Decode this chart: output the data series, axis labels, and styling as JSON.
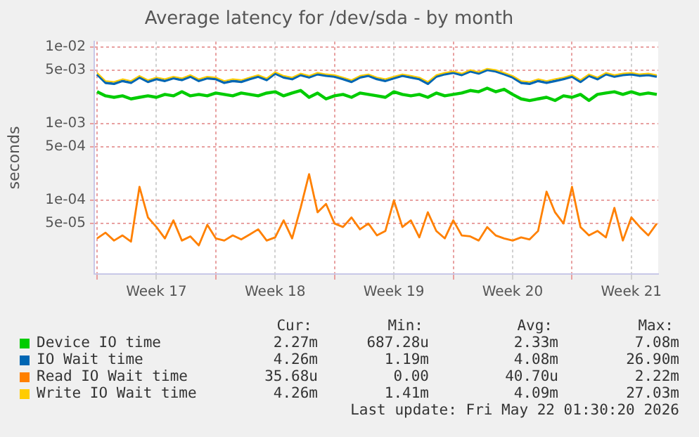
{
  "chart_data": {
    "type": "line",
    "title": "Average latency for /dev/sda - by month",
    "ylabel": "seconds",
    "log": "y",
    "grid": true,
    "legend": "bottom",
    "marker": "none",
    "line_style": "solid",
    "x": [
      "2026-04-19T00:00",
      "2026-04-19T12:00",
      "2026-04-20T00:00",
      "2026-04-20T12:00",
      "2026-04-21T00:00",
      "2026-04-21T12:00",
      "2026-04-22T00:00",
      "2026-04-22T12:00",
      "2026-04-23T00:00",
      "2026-04-23T12:00",
      "2026-04-24T00:00",
      "2026-04-24T12:00",
      "2026-04-25T00:00",
      "2026-04-25T12:00",
      "2026-04-26T00:00",
      "2026-04-26T12:00",
      "2026-04-27T00:00",
      "2026-04-27T12:00",
      "2026-04-28T00:00",
      "2026-04-28T12:00",
      "2026-04-29T00:00",
      "2026-04-29T12:00",
      "2026-04-30T00:00",
      "2026-04-30T12:00",
      "2026-05-01T00:00",
      "2026-05-01T12:00",
      "2026-05-02T00:00",
      "2026-05-02T12:00",
      "2026-05-03T00:00",
      "2026-05-03T12:00",
      "2026-05-04T00:00",
      "2026-05-04T12:00",
      "2026-05-05T00:00",
      "2026-05-05T12:00",
      "2026-05-06T00:00",
      "2026-05-06T12:00",
      "2026-05-07T00:00",
      "2026-05-07T12:00",
      "2026-05-08T00:00",
      "2026-05-08T12:00",
      "2026-05-09T00:00",
      "2026-05-09T12:00",
      "2026-05-10T00:00",
      "2026-05-10T12:00",
      "2026-05-11T00:00",
      "2026-05-11T12:00",
      "2026-05-12T00:00",
      "2026-05-12T12:00",
      "2026-05-13T00:00",
      "2026-05-13T12:00",
      "2026-05-14T00:00",
      "2026-05-14T12:00",
      "2026-05-15T00:00",
      "2026-05-15T12:00",
      "2026-05-16T00:00",
      "2026-05-16T12:00",
      "2026-05-17T00:00",
      "2026-05-17T12:00",
      "2026-05-18T00:00",
      "2026-05-18T12:00",
      "2026-05-19T00:00",
      "2026-05-19T12:00",
      "2026-05-20T00:00",
      "2026-05-20T12:00",
      "2026-05-21T00:00",
      "2026-05-21T12:00",
      "2026-05-22T00:00"
    ],
    "xlim": [
      "2026-04-18T20:00",
      "2026-05-22T02:00"
    ],
    "xticks": [
      {
        "value": "2026-04-19T00:00",
        "label": null
      },
      {
        "value": "2026-04-22T12:00",
        "label": "Week 17"
      },
      {
        "value": "2026-04-26T00:00",
        "label": null
      },
      {
        "value": "2026-04-29T12:00",
        "label": "Week 18"
      },
      {
        "value": "2026-05-03T00:00",
        "label": null
      },
      {
        "value": "2026-05-06T12:00",
        "label": "Week 19"
      },
      {
        "value": "2026-05-10T00:00",
        "label": null
      },
      {
        "value": "2026-05-13T12:00",
        "label": "Week 20"
      },
      {
        "value": "2026-05-17T00:00",
        "label": null
      },
      {
        "value": "2026-05-20T12:00",
        "label": "Week 21"
      }
    ],
    "ylim": [
      1.1e-05,
      0.0117
    ],
    "yticks": [
      {
        "value": 5e-05,
        "label": "5e-05"
      },
      {
        "value": 0.0001,
        "label": "1e-04"
      },
      {
        "value": 0.0005,
        "label": "5e-04"
      },
      {
        "value": 0.001,
        "label": "1e-03"
      },
      {
        "value": 0.005,
        "label": "5e-03"
      },
      {
        "value": 0.01,
        "label": "1e-02"
      }
    ],
    "series": [
      {
        "name": "Device IO time",
        "color": "#00cc00",
        "values": [
          0.0026,
          0.0023,
          0.0022,
          0.0023,
          0.0021,
          0.0022,
          0.0023,
          0.0022,
          0.0024,
          0.0023,
          0.0026,
          0.0023,
          0.0024,
          0.0023,
          0.0025,
          0.0024,
          0.0023,
          0.0025,
          0.0024,
          0.0023,
          0.0025,
          0.0026,
          0.0023,
          0.0025,
          0.0027,
          0.0022,
          0.0025,
          0.0021,
          0.0023,
          0.0024,
          0.0022,
          0.0025,
          0.0024,
          0.0023,
          0.0022,
          0.0026,
          0.0024,
          0.0023,
          0.0024,
          0.0022,
          0.0025,
          0.0023,
          0.0024,
          0.0025,
          0.0027,
          0.0026,
          0.0029,
          0.0026,
          0.0028,
          0.0024,
          0.0021,
          0.002,
          0.0021,
          0.0022,
          0.002,
          0.0023,
          0.0022,
          0.0024,
          0.002,
          0.0024,
          0.0025,
          0.0026,
          0.0024,
          0.0026,
          0.0024,
          0.0025,
          0.0024
        ]
      },
      {
        "name": "IO Wait time",
        "color": "#0066b3",
        "values": [
          0.0044,
          0.0034,
          0.0033,
          0.0036,
          0.0034,
          0.004,
          0.0035,
          0.0038,
          0.0036,
          0.0039,
          0.0037,
          0.0041,
          0.0036,
          0.0039,
          0.0038,
          0.0034,
          0.0036,
          0.0035,
          0.0038,
          0.0041,
          0.0037,
          0.0045,
          0.004,
          0.0038,
          0.0043,
          0.004,
          0.0044,
          0.0042,
          0.0041,
          0.0038,
          0.0035,
          0.004,
          0.0042,
          0.0038,
          0.0036,
          0.0039,
          0.0042,
          0.004,
          0.0038,
          0.0033,
          0.0041,
          0.0044,
          0.0046,
          0.0043,
          0.0048,
          0.0045,
          0.005,
          0.0048,
          0.0044,
          0.004,
          0.0034,
          0.0033,
          0.0036,
          0.0034,
          0.0036,
          0.0038,
          0.0041,
          0.0035,
          0.0042,
          0.0038,
          0.0044,
          0.0041,
          0.0043,
          0.0044,
          0.0042,
          0.0043,
          0.0041
        ]
      },
      {
        "name": "Read IO Wait time",
        "color": "#ff8000",
        "values": [
          3.2e-05,
          3.8e-05,
          3e-05,
          3.5e-05,
          2.9e-05,
          0.00015,
          6e-05,
          4.5e-05,
          3.2e-05,
          5.5e-05,
          3e-05,
          3.4e-05,
          2.6e-05,
          4.8e-05,
          3.2e-05,
          3e-05,
          3.5e-05,
          3.1e-05,
          3.6e-05,
          4.2e-05,
          3e-05,
          3.3e-05,
          5.5e-05,
          3.2e-05,
          8e-05,
          0.00022,
          7e-05,
          9e-05,
          5e-05,
          4.5e-05,
          6e-05,
          4.2e-05,
          5e-05,
          3.5e-05,
          4e-05,
          0.0001,
          4.5e-05,
          5.5e-05,
          3.3e-05,
          7e-05,
          4e-05,
          3.2e-05,
          5.5e-05,
          3.5e-05,
          3.4e-05,
          3e-05,
          4.5e-05,
          3.5e-05,
          3.2e-05,
          3e-05,
          3.3e-05,
          3.1e-05,
          4e-05,
          0.00013,
          7e-05,
          5e-05,
          0.00015,
          4.5e-05,
          3.5e-05,
          4e-05,
          3.3e-05,
          8e-05,
          3e-05,
          6e-05,
          4.5e-05,
          3.5e-05,
          5e-05
        ]
      },
      {
        "name": "Write IO Wait time",
        "color": "#ffcc00",
        "values": [
          0.0046,
          0.0036,
          0.0035,
          0.0038,
          0.0036,
          0.0042,
          0.0037,
          0.004,
          0.0038,
          0.0041,
          0.0039,
          0.0043,
          0.0038,
          0.0041,
          0.004,
          0.0036,
          0.0038,
          0.0037,
          0.004,
          0.0043,
          0.0039,
          0.0047,
          0.0042,
          0.004,
          0.0045,
          0.0042,
          0.0046,
          0.0044,
          0.0043,
          0.004,
          0.0037,
          0.0042,
          0.0044,
          0.004,
          0.0038,
          0.0041,
          0.0044,
          0.0042,
          0.004,
          0.0035,
          0.0043,
          0.0046,
          0.0048,
          0.0045,
          0.005,
          0.0047,
          0.0052,
          0.005,
          0.0046,
          0.0042,
          0.0036,
          0.0035,
          0.0038,
          0.0036,
          0.0038,
          0.004,
          0.0043,
          0.0037,
          0.0044,
          0.004,
          0.0046,
          0.0043,
          0.0045,
          0.0046,
          0.0044,
          0.0045,
          0.0043
        ]
      }
    ],
    "annotations": [
      "Cur:",
      "Min:",
      "Avg:",
      "Max:",
      "2.27m",
      "687.28u",
      "2.33m",
      "7.08m",
      "4.26m",
      "1.19m",
      "4.08m",
      "26.90m",
      "35.68u",
      "0.00",
      "40.70u",
      "2.22m",
      "4.26m",
      "1.41m",
      "4.09m",
      "27.03m",
      "Last update: Fri May 22 01:30:20 2026"
    ]
  }
}
